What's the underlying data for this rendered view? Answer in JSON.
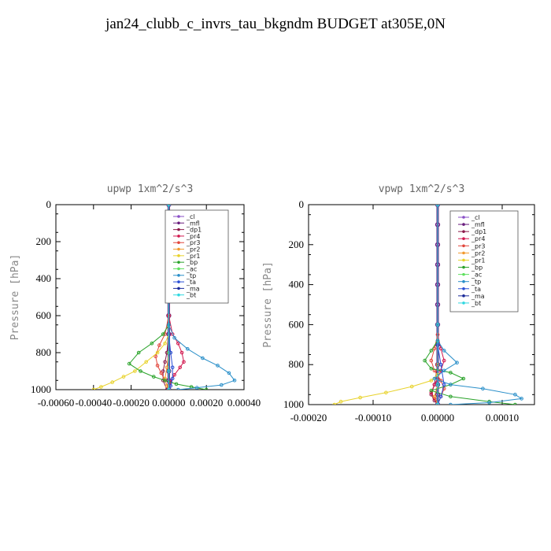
{
  "title": "jan24_clubb_c_invrs_tau_bkgndm  BUDGET at305E,0N",
  "legend_items": [
    {
      "name": "_cl",
      "color": "#8a4fc7"
    },
    {
      "name": "_mfl",
      "color": "#6a1e7e"
    },
    {
      "name": "_dp1",
      "color": "#8b1a4a"
    },
    {
      "name": "_pr4",
      "color": "#d2184f"
    },
    {
      "name": "_pr3",
      "color": "#e2463c"
    },
    {
      "name": "_pr2",
      "color": "#f29a2e"
    },
    {
      "name": "_pr1",
      "color": "#e8d22a"
    },
    {
      "name": "_bp",
      "color": "#2aa32a"
    },
    {
      "name": "_ac",
      "color": "#5fe05f"
    },
    {
      "name": "_tp",
      "color": "#2a8fc9"
    },
    {
      "name": "_ta",
      "color": "#2a4fd6"
    },
    {
      "name": "_ma",
      "color": "#1a2a9a"
    },
    {
      "name": "_bt",
      "color": "#30d8e0"
    }
  ],
  "chart_data": [
    {
      "type": "line",
      "title": "upwp   1xm^2/s^3",
      "ylabel": "Pressure  [hPa]",
      "xlim": [
        -0.0006,
        0.0004
      ],
      "ylim": [
        1000,
        0
      ],
      "xticks": [
        -0.0006,
        -0.0004,
        -0.0002,
        0.0,
        0.0002,
        0.0004
      ],
      "xtick_labels": [
        "-0.00060",
        "-0.00040",
        "-0.00020",
        "0.00000",
        "0.00020",
        "0.00040"
      ],
      "yticks": [
        0,
        200,
        400,
        600,
        800,
        1000
      ],
      "legend_position": "top-right",
      "series": [
        {
          "name": "_cl",
          "x": [
            0,
            0,
            0,
            0,
            0,
            0,
            0,
            0,
            0,
            0,
            0,
            0
          ],
          "y": [
            0,
            100,
            200,
            300,
            400,
            500,
            600,
            700,
            800,
            900,
            950,
            1000
          ]
        },
        {
          "name": "_mfl",
          "x": [
            0,
            0,
            0,
            0,
            0,
            0,
            0,
            0,
            0,
            0,
            0,
            0
          ],
          "y": [
            0,
            100,
            200,
            300,
            400,
            500,
            600,
            700,
            800,
            900,
            950,
            1000
          ]
        },
        {
          "name": "_dp1",
          "x": [
            0,
            0,
            0,
            0,
            0,
            -1e-05,
            -2e-05,
            -3e-05,
            -3e-05,
            -1e-05
          ],
          "y": [
            0,
            200,
            400,
            600,
            700,
            800,
            850,
            900,
            950,
            1000
          ]
        },
        {
          "name": "_pr4",
          "x": [
            0,
            0,
            2e-05,
            5e-05,
            7e-05,
            8e-05,
            6e-05,
            3e-05,
            1e-05,
            0
          ],
          "y": [
            0,
            600,
            700,
            750,
            800,
            850,
            880,
            920,
            960,
            1000
          ]
        },
        {
          "name": "_pr3",
          "x": [
            0,
            0,
            -2e-05,
            -5e-05,
            -7e-05,
            -6e-05,
            -4e-05,
            -2e-05,
            0
          ],
          "y": [
            0,
            600,
            700,
            760,
            820,
            870,
            910,
            950,
            1000
          ]
        },
        {
          "name": "_pr2",
          "x": [
            0,
            0,
            0,
            -1e-05,
            -2e-05,
            -1e-05,
            0
          ],
          "y": [
            0,
            700,
            800,
            880,
            940,
            980,
            1000
          ]
        },
        {
          "name": "_pr1",
          "x": [
            0,
            0,
            -2e-05,
            -6e-05,
            -0.00012,
            -0.00018,
            -0.00024,
            -0.0003,
            -0.00036,
            -0.0004
          ],
          "y": [
            0,
            700,
            750,
            800,
            850,
            900,
            930,
            960,
            985,
            1000
          ]
        },
        {
          "name": "_bp",
          "x": [
            0,
            0,
            -3e-05,
            -9e-05,
            -0.00016,
            -0.00021,
            -0.00015,
            -8e-05,
            -2e-05,
            4e-05,
            0.00012,
            0.0002
          ],
          "y": [
            0,
            650,
            700,
            750,
            800,
            860,
            900,
            930,
            950,
            970,
            985,
            1000
          ]
        },
        {
          "name": "_ac",
          "x": [
            0,
            0,
            0,
            0,
            0
          ],
          "y": [
            0,
            500,
            800,
            900,
            1000
          ]
        },
        {
          "name": "_tp",
          "x": [
            0,
            0,
            3e-05,
            0.0001,
            0.00018,
            0.00026,
            0.00032,
            0.00035,
            0.00028,
            0.00015,
            5e-05
          ],
          "y": [
            0,
            650,
            720,
            780,
            830,
            870,
            910,
            950,
            975,
            990,
            1000
          ]
        },
        {
          "name": "_ta",
          "x": [
            0,
            0,
            1e-05,
            2e-05,
            2e-05,
            1e-05,
            0
          ],
          "y": [
            0,
            700,
            800,
            880,
            940,
            980,
            1000
          ]
        },
        {
          "name": "_ma",
          "x": [
            0,
            0,
            0,
            0
          ],
          "y": [
            0,
            500,
            900,
            1000
          ]
        },
        {
          "name": "_bt",
          "x": [
            0,
            0,
            0,
            0
          ],
          "y": [
            0,
            500,
            900,
            1000
          ]
        }
      ]
    },
    {
      "type": "line",
      "title": "vpwp   1xm^2/s^3",
      "ylabel": "Pressure  [hPa]",
      "xlim": [
        -0.0002,
        0.00015
      ],
      "ylim": [
        1000,
        0
      ],
      "xticks": [
        -0.0002,
        -0.0001,
        0.0,
        0.0001
      ],
      "xtick_labels": [
        "-0.00020",
        "-0.00010",
        "0.00000",
        "0.00010"
      ],
      "yticks": [
        0,
        200,
        400,
        600,
        800,
        1000
      ],
      "legend_position": "top-right",
      "series": [
        {
          "name": "_cl",
          "x": [
            0,
            0,
            0,
            0,
            0,
            0,
            0,
            0,
            0,
            0,
            0,
            0
          ],
          "y": [
            0,
            100,
            200,
            300,
            400,
            500,
            600,
            700,
            800,
            900,
            950,
            1000
          ]
        },
        {
          "name": "_mfl",
          "x": [
            0,
            0,
            0,
            0,
            0,
            0,
            0,
            0,
            0,
            0,
            0,
            0
          ],
          "y": [
            0,
            100,
            200,
            300,
            400,
            500,
            600,
            700,
            800,
            900,
            950,
            1000
          ]
        },
        {
          "name": "_dp1",
          "x": [
            0,
            0,
            0,
            -5e-06,
            -1e-05,
            -5e-06,
            0
          ],
          "y": [
            0,
            600,
            800,
            900,
            950,
            980,
            1000
          ]
        },
        {
          "name": "_pr4",
          "x": [
            0,
            0,
            5e-06,
            1e-05,
            5e-06,
            0,
            -5e-06,
            -1e-05,
            -5e-06,
            0
          ],
          "y": [
            0,
            650,
            720,
            780,
            830,
            870,
            900,
            940,
            970,
            1000
          ]
        },
        {
          "name": "_pr3",
          "x": [
            0,
            0,
            -5e-06,
            -1e-05,
            -5e-06,
            5e-06,
            1e-05,
            5e-06,
            0
          ],
          "y": [
            0,
            650,
            720,
            780,
            830,
            880,
            920,
            960,
            1000
          ]
        },
        {
          "name": "_pr2",
          "x": [
            0,
            0,
            0,
            -5e-06,
            0
          ],
          "y": [
            0,
            800,
            900,
            960,
            1000
          ]
        },
        {
          "name": "_pr1",
          "x": [
            0,
            0,
            -1e-05,
            -4e-05,
            -8e-05,
            -0.00012,
            -0.00015,
            -0.00016
          ],
          "y": [
            0,
            850,
            880,
            910,
            940,
            965,
            985,
            1000
          ]
        },
        {
          "name": "_bp",
          "x": [
            0,
            0,
            -1e-05,
            -2e-05,
            -1e-05,
            2e-05,
            4e-05,
            2e-05,
            -1e-05,
            2e-05,
            8e-05,
            0.00012
          ],
          "y": [
            0,
            680,
            730,
            780,
            820,
            840,
            870,
            900,
            930,
            960,
            985,
            1000
          ]
        },
        {
          "name": "_ac",
          "x": [
            0,
            0,
            0,
            0
          ],
          "y": [
            0,
            600,
            900,
            1000
          ]
        },
        {
          "name": "_tp",
          "x": [
            0,
            0,
            1e-05,
            3e-05,
            1e-05,
            -5e-06,
            2e-05,
            7e-05,
            0.00012,
            0.00013,
            8e-05,
            2e-05
          ],
          "y": [
            0,
            680,
            730,
            790,
            830,
            870,
            900,
            920,
            950,
            970,
            990,
            1000
          ]
        },
        {
          "name": "_ta",
          "x": [
            0,
            0,
            5e-06,
            1e-05,
            5e-06,
            0
          ],
          "y": [
            0,
            700,
            800,
            900,
            960,
            1000
          ]
        },
        {
          "name": "_ma",
          "x": [
            0,
            0,
            0,
            0
          ],
          "y": [
            0,
            600,
            900,
            1000
          ]
        },
        {
          "name": "_bt",
          "x": [
            0,
            0,
            0,
            0
          ],
          "y": [
            0,
            600,
            900,
            1000
          ]
        }
      ]
    }
  ]
}
